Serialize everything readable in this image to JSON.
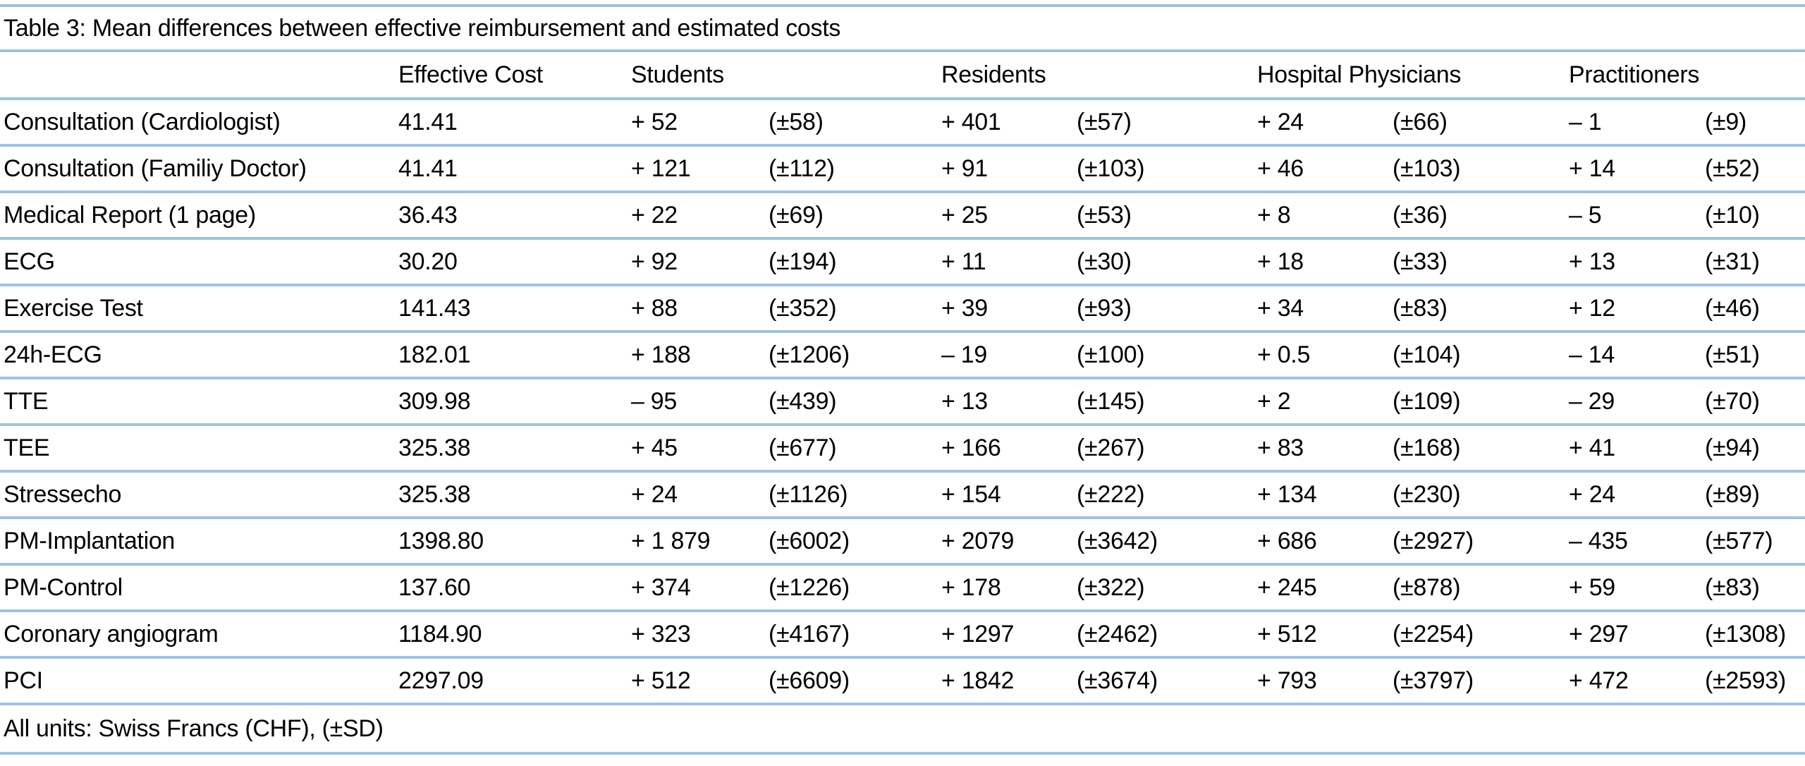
{
  "title": "Table 3: Mean differences between effective reimbursement and estimated costs",
  "footnote": "All units: Swiss Francs (CHF), (±SD)",
  "colors": {
    "rule": "#9CC3E3",
    "text": "#000000",
    "background": "#FFFFFF"
  },
  "table": {
    "column_headers": {
      "row_label": "",
      "effective_cost": "Effective Cost",
      "students": "Students",
      "residents": "Residents",
      "hospital_physicians": "Hospital Physicians",
      "practitioners": "Practitioners"
    },
    "rows": [
      {
        "label": "Consultation (Cardiologist)",
        "effective_cost": "41.41",
        "students_mean": "+ 52",
        "students_sd": "(±58)",
        "residents_mean": "+ 401",
        "residents_sd": "(±57)",
        "hospital_mean": "+ 24",
        "hospital_sd": "(±66)",
        "practitioners_mean": "– 1",
        "practitioners_sd": "(±9)"
      },
      {
        "label": "Consultation (Familiy Doctor)",
        "effective_cost": "41.41",
        "students_mean": "+ 121",
        "students_sd": "(±112)",
        "residents_mean": "+ 91",
        "residents_sd": "(±103)",
        "hospital_mean": "+ 46",
        "hospital_sd": "(±103)",
        "practitioners_mean": "+ 14",
        "practitioners_sd": "(±52)"
      },
      {
        "label": "Medical Report (1 page)",
        "effective_cost": "36.43",
        "students_mean": "+ 22",
        "students_sd": "(±69)",
        "residents_mean": "+ 25",
        "residents_sd": "(±53)",
        "hospital_mean": "+ 8",
        "hospital_sd": "(±36)",
        "practitioners_mean": "– 5",
        "practitioners_sd": "(±10)"
      },
      {
        "label": "ECG",
        "effective_cost": "30.20",
        "students_mean": "+ 92",
        "students_sd": "(±194)",
        "residents_mean": "+ 11",
        "residents_sd": "(±30)",
        "hospital_mean": "+ 18",
        "hospital_sd": "(±33)",
        "practitioners_mean": "+ 13",
        "practitioners_sd": "(±31)"
      },
      {
        "label": "Exercise Test",
        "effective_cost": "141.43",
        "students_mean": "+ 88",
        "students_sd": "(±352)",
        "residents_mean": "+ 39",
        "residents_sd": "(±93)",
        "hospital_mean": "+ 34",
        "hospital_sd": "(±83)",
        "practitioners_mean": "+ 12",
        "practitioners_sd": "(±46)"
      },
      {
        "label": "24h-ECG",
        "effective_cost": "182.01",
        "students_mean": "+ 188",
        "students_sd": "(±1206)",
        "residents_mean": "– 19",
        "residents_sd": "(±100)",
        "hospital_mean": "+ 0.5",
        "hospital_sd": "(±104)",
        "practitioners_mean": "– 14",
        "practitioners_sd": "(±51)"
      },
      {
        "label": "TTE",
        "effective_cost": "309.98",
        "students_mean": "– 95",
        "students_sd": "(±439)",
        "residents_mean": "+ 13",
        "residents_sd": "(±145)",
        "hospital_mean": "+ 2",
        "hospital_sd": "(±109)",
        "practitioners_mean": "– 29",
        "practitioners_sd": "(±70)"
      },
      {
        "label": "TEE",
        "effective_cost": "325.38",
        "students_mean": "+ 45",
        "students_sd": "(±677)",
        "residents_mean": "+ 166",
        "residents_sd": "(±267)",
        "hospital_mean": "+ 83",
        "hospital_sd": "(±168)",
        "practitioners_mean": "+ 41",
        "practitioners_sd": "(±94)"
      },
      {
        "label": "Stressecho",
        "effective_cost": "325.38",
        "students_mean": "+ 24",
        "students_sd": "(±1126)",
        "residents_mean": "+ 154",
        "residents_sd": "(±222)",
        "hospital_mean": "+ 134",
        "hospital_sd": "(±230)",
        "practitioners_mean": "+ 24",
        "practitioners_sd": "(±89)"
      },
      {
        "label": "PM-Implantation",
        "effective_cost": "1398.80",
        "students_mean": "+ 1 879",
        "students_sd": "(±6002)",
        "residents_mean": "+ 2079",
        "residents_sd": "(±3642)",
        "hospital_mean": "+ 686",
        "hospital_sd": "(±2927)",
        "practitioners_mean": "– 435",
        "practitioners_sd": "(±577)"
      },
      {
        "label": "PM-Control",
        "effective_cost": "137.60",
        "students_mean": "+ 374",
        "students_sd": "(±1226)",
        "residents_mean": "+ 178",
        "residents_sd": "(±322)",
        "hospital_mean": "+ 245",
        "hospital_sd": "(±878)",
        "practitioners_mean": "+ 59",
        "practitioners_sd": "(±83)"
      },
      {
        "label": "Coronary angiogram",
        "effective_cost": "1184.90",
        "students_mean": "+ 323",
        "students_sd": "(±4167)",
        "residents_mean": "+ 1297",
        "residents_sd": "(±2462)",
        "hospital_mean": "+ 512",
        "hospital_sd": "(±2254)",
        "practitioners_mean": "+ 297",
        "practitioners_sd": "(±1308)"
      },
      {
        "label": "PCI",
        "effective_cost": "2297.09",
        "students_mean": "+ 512",
        "students_sd": "(±6609)",
        "residents_mean": "+ 1842",
        "residents_sd": "(±3674)",
        "hospital_mean": "+ 793",
        "hospital_sd": "(±3797)",
        "practitioners_mean": "+ 472",
        "practitioners_sd": "(±2593)"
      }
    ]
  }
}
